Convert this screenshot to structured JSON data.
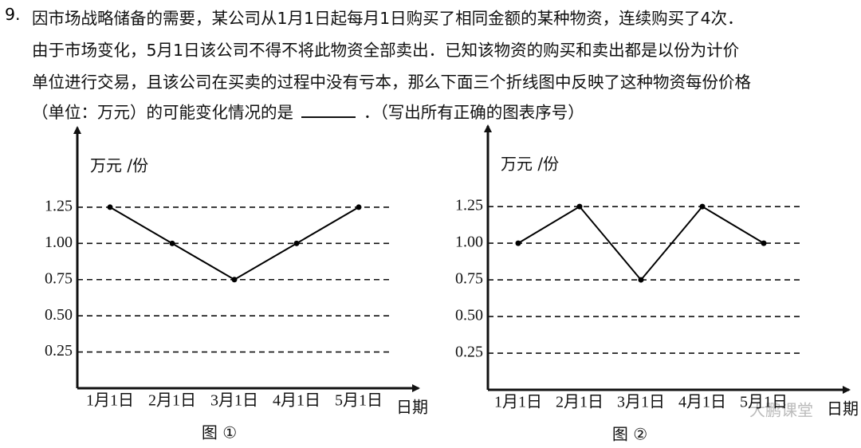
{
  "question": {
    "number": "9.",
    "lines": [
      "因市场战略储备的需要，某公司从1月1日起每月1日购买了相同金额的某种物资，连续购买了4次．",
      "由于市场变化，5月1日该公司不得不将此物资全部卖出．已知该物资的购买和卖出都是以份为计价",
      "单位进行交易，且该公司在买卖的过程中没有亏本，那么下面三个折线图中反映了这种物资每份价格",
      "（单位：万元）的可能变化情况的是"
    ],
    "after_blank": "．（写出所有正确的图表序号）"
  },
  "watermark": "大鹏课堂",
  "chart_data": [
    {
      "type": "line",
      "caption": "图 ①",
      "y_label": "万元  /份",
      "x_label": "日期",
      "categories": [
        "1月1日",
        "2月1日",
        "3月1日",
        "4月1日",
        "5月1日"
      ],
      "values": [
        1.25,
        1.0,
        0.75,
        1.0,
        1.25
      ],
      "color": "#000000",
      "ylim": [
        0,
        1.8
      ],
      "yticks": [
        0.25,
        {
          "value": 0.5,
          "label": "0.50"
        },
        0.75,
        {
          "value": 1,
          "label": "1.00"
        },
        1.25
      ],
      "grid": true
    },
    {
      "type": "line",
      "caption": "图 ②",
      "y_label": "万元  /份",
      "x_label": "日期",
      "categories": [
        "1月1日",
        "2月1日",
        "3月1日",
        "4月1日",
        "5月1日"
      ],
      "values": [
        1.0,
        1.25,
        0.75,
        1.25,
        1.0
      ],
      "color": "#000000",
      "ylim": [
        0,
        1.8
      ],
      "yticks": [
        0.25,
        {
          "value": 0.5,
          "label": "0.50"
        },
        0.75,
        {
          "value": 1,
          "label": "1.00"
        },
        1.25
      ],
      "grid": true
    }
  ]
}
